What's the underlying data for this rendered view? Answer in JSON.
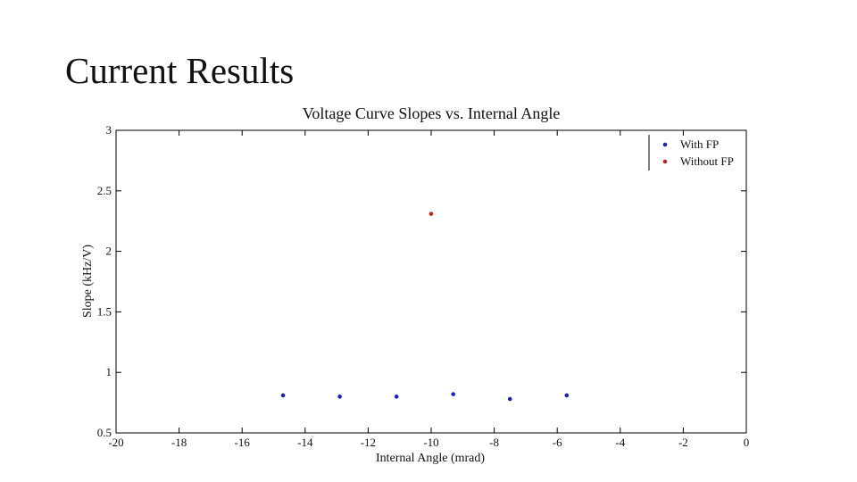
{
  "slide": {
    "title": "Current Results"
  },
  "chart_data": {
    "type": "scatter",
    "title": "Voltage Curve Slopes vs. Internal Angle",
    "xlabel": "Internal Angle (mrad)",
    "ylabel": "Slope (kHz/V)",
    "xlim": [
      -20,
      0
    ],
    "ylim": [
      0.5,
      3
    ],
    "xticks": [
      -20,
      -18,
      -16,
      -14,
      -12,
      -10,
      -8,
      -6,
      -4,
      -2,
      0
    ],
    "yticks": [
      0.5,
      1,
      1.5,
      2,
      2.5,
      3
    ],
    "xtick_labels": [
      "-20",
      "-18",
      "-16",
      "-14",
      "-12",
      "-10",
      "-8",
      "-6",
      "-4",
      "-2",
      "0"
    ],
    "ytick_labels": [
      "0.5",
      "1",
      "1.5",
      "2",
      "2.5",
      "3"
    ],
    "grid": false,
    "legend_position": "top-right",
    "series": [
      {
        "name": "With FP",
        "color": "#1f1fb4",
        "x": [
          -14.7,
          -12.9,
          -11.1,
          -9.3,
          -7.5,
          -5.7
        ],
        "y": [
          0.81,
          0.8,
          0.8,
          0.82,
          0.78,
          0.81
        ]
      },
      {
        "name": "Without FP",
        "color": "#cc1f1f",
        "x": [
          -10.0
        ],
        "y": [
          2.31
        ]
      }
    ]
  }
}
